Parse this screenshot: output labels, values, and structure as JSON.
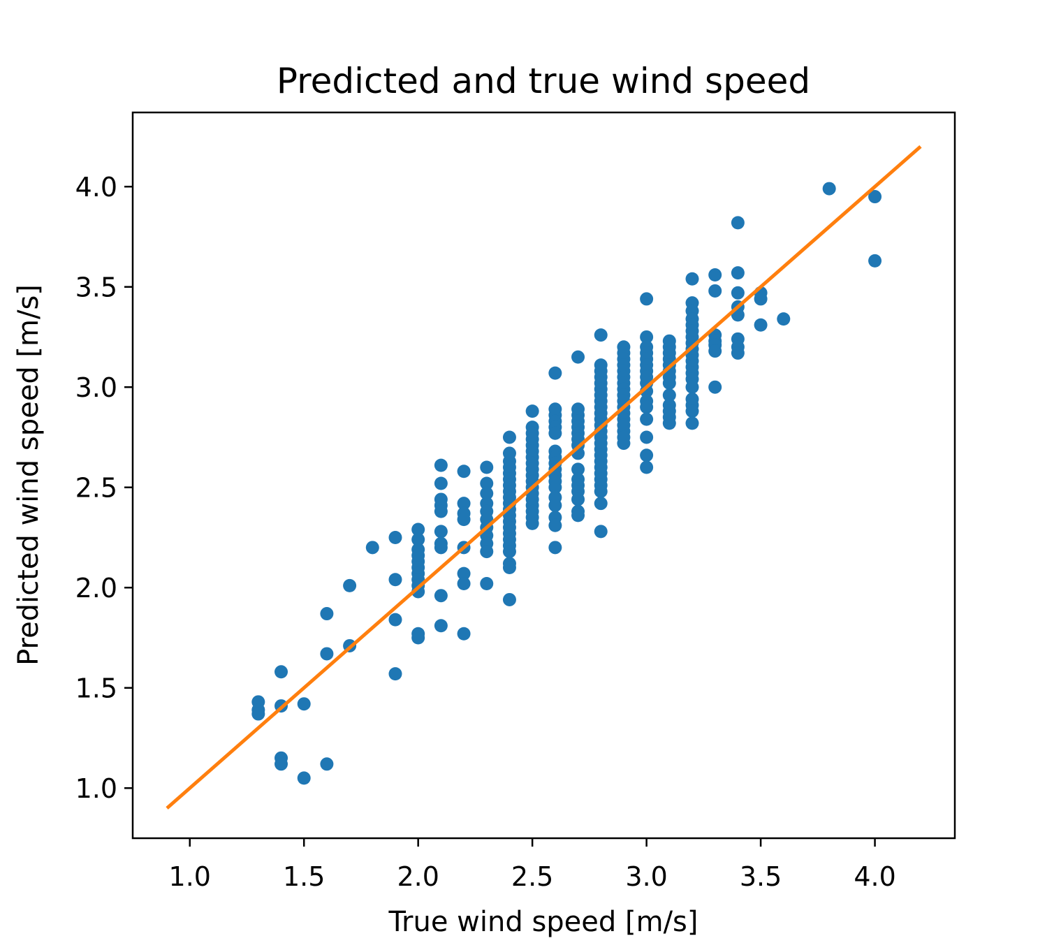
{
  "chart_data": {
    "type": "scatter",
    "title": "Predicted and true wind speed",
    "xlabel": "True wind speed [m/s]",
    "ylabel": "Predicted wind speed [m/s]",
    "xlim": [
      0.75,
      4.35
    ],
    "ylim": [
      0.75,
      4.37
    ],
    "x_ticks": [
      1.0,
      1.5,
      2.0,
      2.5,
      3.0,
      3.5,
      4.0
    ],
    "y_ticks": [
      1.0,
      1.5,
      2.0,
      2.5,
      3.0,
      3.5,
      4.0
    ],
    "tick_labels_x": [
      "1.0",
      "1.5",
      "2.0",
      "2.5",
      "3.0",
      "3.5",
      "4.0"
    ],
    "tick_labels_y": [
      "1.0",
      "1.5",
      "2.0",
      "2.5",
      "3.0",
      "3.5",
      "4.0"
    ],
    "grid": false,
    "colors": {
      "points": "#1f77b4",
      "line": "#ff7f0e"
    },
    "series": [
      {
        "type": "scatter",
        "points": [
          [
            1.3,
            1.43
          ],
          [
            1.3,
            1.39
          ],
          [
            1.3,
            1.37
          ],
          [
            1.4,
            1.58
          ],
          [
            1.4,
            1.41
          ],
          [
            1.4,
            1.15
          ],
          [
            1.4,
            1.12
          ],
          [
            1.5,
            1.42
          ],
          [
            1.5,
            1.05
          ],
          [
            1.6,
            1.87
          ],
          [
            1.6,
            1.67
          ],
          [
            1.6,
            1.12
          ],
          [
            1.7,
            2.01
          ],
          [
            1.7,
            1.71
          ],
          [
            1.8,
            2.2
          ],
          [
            1.9,
            2.25
          ],
          [
            1.9,
            2.04
          ],
          [
            1.9,
            1.84
          ],
          [
            1.9,
            1.57
          ],
          [
            2.0,
            2.29
          ],
          [
            2.0,
            2.24
          ],
          [
            2.0,
            2.19
          ],
          [
            2.0,
            2.16
          ],
          [
            2.0,
            2.13
          ],
          [
            2.0,
            2.1
          ],
          [
            2.0,
            2.07
          ],
          [
            2.0,
            2.04
          ],
          [
            2.0,
            2.01
          ],
          [
            2.0,
            1.98
          ],
          [
            2.0,
            1.77
          ],
          [
            2.0,
            1.75
          ],
          [
            2.1,
            2.61
          ],
          [
            2.1,
            2.52
          ],
          [
            2.1,
            2.44
          ],
          [
            2.1,
            2.41
          ],
          [
            2.1,
            2.38
          ],
          [
            2.1,
            2.28
          ],
          [
            2.1,
            2.22
          ],
          [
            2.1,
            2.2
          ],
          [
            2.1,
            1.96
          ],
          [
            2.1,
            1.81
          ],
          [
            2.2,
            2.58
          ],
          [
            2.2,
            2.42
          ],
          [
            2.2,
            2.37
          ],
          [
            2.2,
            2.34
          ],
          [
            2.2,
            2.2
          ],
          [
            2.2,
            2.07
          ],
          [
            2.2,
            2.02
          ],
          [
            2.2,
            1.77
          ],
          [
            2.3,
            2.6
          ],
          [
            2.3,
            2.52
          ],
          [
            2.3,
            2.47
          ],
          [
            2.3,
            2.42
          ],
          [
            2.3,
            2.38
          ],
          [
            2.3,
            2.34
          ],
          [
            2.3,
            2.3
          ],
          [
            2.3,
            2.26
          ],
          [
            2.3,
            2.22
          ],
          [
            2.3,
            2.18
          ],
          [
            2.3,
            2.02
          ],
          [
            2.4,
            2.75
          ],
          [
            2.4,
            2.67
          ],
          [
            2.4,
            2.63
          ],
          [
            2.4,
            2.6
          ],
          [
            2.4,
            2.57
          ],
          [
            2.4,
            2.54
          ],
          [
            2.4,
            2.51
          ],
          [
            2.4,
            2.48
          ],
          [
            2.4,
            2.45
          ],
          [
            2.4,
            2.42
          ],
          [
            2.4,
            2.39
          ],
          [
            2.4,
            2.36
          ],
          [
            2.4,
            2.33
          ],
          [
            2.4,
            2.3
          ],
          [
            2.4,
            2.27
          ],
          [
            2.4,
            2.24
          ],
          [
            2.4,
            2.21
          ],
          [
            2.4,
            2.18
          ],
          [
            2.4,
            2.12
          ],
          [
            2.4,
            2.1
          ],
          [
            2.4,
            1.94
          ],
          [
            2.5,
            2.88
          ],
          [
            2.5,
            2.8
          ],
          [
            2.5,
            2.77
          ],
          [
            2.5,
            2.74
          ],
          [
            2.5,
            2.71
          ],
          [
            2.5,
            2.68
          ],
          [
            2.5,
            2.65
          ],
          [
            2.5,
            2.62
          ],
          [
            2.5,
            2.59
          ],
          [
            2.5,
            2.56
          ],
          [
            2.5,
            2.53
          ],
          [
            2.5,
            2.5
          ],
          [
            2.5,
            2.47
          ],
          [
            2.5,
            2.44
          ],
          [
            2.5,
            2.41
          ],
          [
            2.5,
            2.38
          ],
          [
            2.5,
            2.35
          ],
          [
            2.5,
            2.32
          ],
          [
            2.6,
            3.07
          ],
          [
            2.6,
            2.89
          ],
          [
            2.6,
            2.86
          ],
          [
            2.6,
            2.83
          ],
          [
            2.6,
            2.8
          ],
          [
            2.6,
            2.77
          ],
          [
            2.6,
            2.68
          ],
          [
            2.6,
            2.65
          ],
          [
            2.6,
            2.62
          ],
          [
            2.6,
            2.59
          ],
          [
            2.6,
            2.56
          ],
          [
            2.6,
            2.53
          ],
          [
            2.6,
            2.5
          ],
          [
            2.6,
            2.45
          ],
          [
            2.6,
            2.41
          ],
          [
            2.6,
            2.35
          ],
          [
            2.6,
            2.31
          ],
          [
            2.6,
            2.2
          ],
          [
            2.7,
            3.15
          ],
          [
            2.7,
            2.89
          ],
          [
            2.7,
            2.86
          ],
          [
            2.7,
            2.83
          ],
          [
            2.7,
            2.8
          ],
          [
            2.7,
            2.77
          ],
          [
            2.7,
            2.74
          ],
          [
            2.7,
            2.71
          ],
          [
            2.7,
            2.67
          ],
          [
            2.7,
            2.59
          ],
          [
            2.7,
            2.54
          ],
          [
            2.7,
            2.51
          ],
          [
            2.7,
            2.48
          ],
          [
            2.7,
            2.44
          ],
          [
            2.7,
            2.38
          ],
          [
            2.7,
            2.36
          ],
          [
            2.8,
            3.26
          ],
          [
            2.8,
            3.11
          ],
          [
            2.8,
            3.08
          ],
          [
            2.8,
            3.05
          ],
          [
            2.8,
            3.02
          ],
          [
            2.8,
            2.99
          ],
          [
            2.8,
            2.96
          ],
          [
            2.8,
            2.93
          ],
          [
            2.8,
            2.9
          ],
          [
            2.8,
            2.87
          ],
          [
            2.8,
            2.84
          ],
          [
            2.8,
            2.81
          ],
          [
            2.8,
            2.78
          ],
          [
            2.8,
            2.75
          ],
          [
            2.8,
            2.72
          ],
          [
            2.8,
            2.69
          ],
          [
            2.8,
            2.66
          ],
          [
            2.8,
            2.63
          ],
          [
            2.8,
            2.6
          ],
          [
            2.8,
            2.57
          ],
          [
            2.8,
            2.54
          ],
          [
            2.8,
            2.51
          ],
          [
            2.8,
            2.48
          ],
          [
            2.8,
            2.42
          ],
          [
            2.8,
            2.28
          ],
          [
            2.9,
            3.2
          ],
          [
            2.9,
            3.17
          ],
          [
            2.9,
            3.14
          ],
          [
            2.9,
            3.11
          ],
          [
            2.9,
            3.08
          ],
          [
            2.9,
            3.05
          ],
          [
            2.9,
            3.02
          ],
          [
            2.9,
            2.99
          ],
          [
            2.9,
            2.96
          ],
          [
            2.9,
            2.93
          ],
          [
            2.9,
            2.9
          ],
          [
            2.9,
            2.87
          ],
          [
            2.9,
            2.84
          ],
          [
            2.9,
            2.81
          ],
          [
            2.9,
            2.78
          ],
          [
            2.9,
            2.75
          ],
          [
            2.9,
            2.72
          ],
          [
            3.0,
            3.44
          ],
          [
            3.0,
            3.25
          ],
          [
            3.0,
            3.2
          ],
          [
            3.0,
            3.17
          ],
          [
            3.0,
            3.14
          ],
          [
            3.0,
            3.11
          ],
          [
            3.0,
            3.08
          ],
          [
            3.0,
            3.05
          ],
          [
            3.0,
            3.02
          ],
          [
            3.0,
            2.98
          ],
          [
            3.0,
            2.93
          ],
          [
            3.0,
            2.9
          ],
          [
            3.0,
            2.84
          ],
          [
            3.0,
            2.75
          ],
          [
            3.0,
            2.66
          ],
          [
            3.0,
            2.6
          ],
          [
            3.1,
            3.23
          ],
          [
            3.1,
            3.2
          ],
          [
            3.1,
            3.17
          ],
          [
            3.1,
            3.14
          ],
          [
            3.1,
            3.11
          ],
          [
            3.1,
            3.08
          ],
          [
            3.1,
            3.05
          ],
          [
            3.1,
            3.02
          ],
          [
            3.1,
            2.96
          ],
          [
            3.1,
            2.91
          ],
          [
            3.1,
            2.88
          ],
          [
            3.1,
            2.85
          ],
          [
            3.1,
            2.82
          ],
          [
            3.2,
            3.54
          ],
          [
            3.2,
            3.42
          ],
          [
            3.2,
            3.38
          ],
          [
            3.2,
            3.34
          ],
          [
            3.2,
            3.31
          ],
          [
            3.2,
            3.28
          ],
          [
            3.2,
            3.25
          ],
          [
            3.2,
            3.22
          ],
          [
            3.2,
            3.19
          ],
          [
            3.2,
            3.16
          ],
          [
            3.2,
            3.13
          ],
          [
            3.2,
            3.1
          ],
          [
            3.2,
            3.07
          ],
          [
            3.2,
            3.04
          ],
          [
            3.2,
            3.0
          ],
          [
            3.2,
            2.94
          ],
          [
            3.2,
            2.91
          ],
          [
            3.2,
            2.88
          ],
          [
            3.2,
            2.82
          ],
          [
            3.3,
            3.56
          ],
          [
            3.3,
            3.48
          ],
          [
            3.3,
            3.26
          ],
          [
            3.3,
            3.23
          ],
          [
            3.3,
            3.21
          ],
          [
            3.3,
            3.18
          ],
          [
            3.3,
            3.0
          ],
          [
            3.4,
            3.82
          ],
          [
            3.4,
            3.57
          ],
          [
            3.4,
            3.47
          ],
          [
            3.4,
            3.4
          ],
          [
            3.4,
            3.36
          ],
          [
            3.4,
            3.24
          ],
          [
            3.4,
            3.2
          ],
          [
            3.4,
            3.17
          ],
          [
            3.5,
            3.47
          ],
          [
            3.5,
            3.44
          ],
          [
            3.5,
            3.31
          ],
          [
            3.6,
            3.34
          ],
          [
            3.8,
            3.99
          ],
          [
            4.0,
            3.95
          ],
          [
            4.0,
            3.63
          ]
        ]
      },
      {
        "type": "line",
        "x": [
          0.9,
          4.2
        ],
        "y": [
          0.9,
          4.2
        ]
      }
    ]
  }
}
